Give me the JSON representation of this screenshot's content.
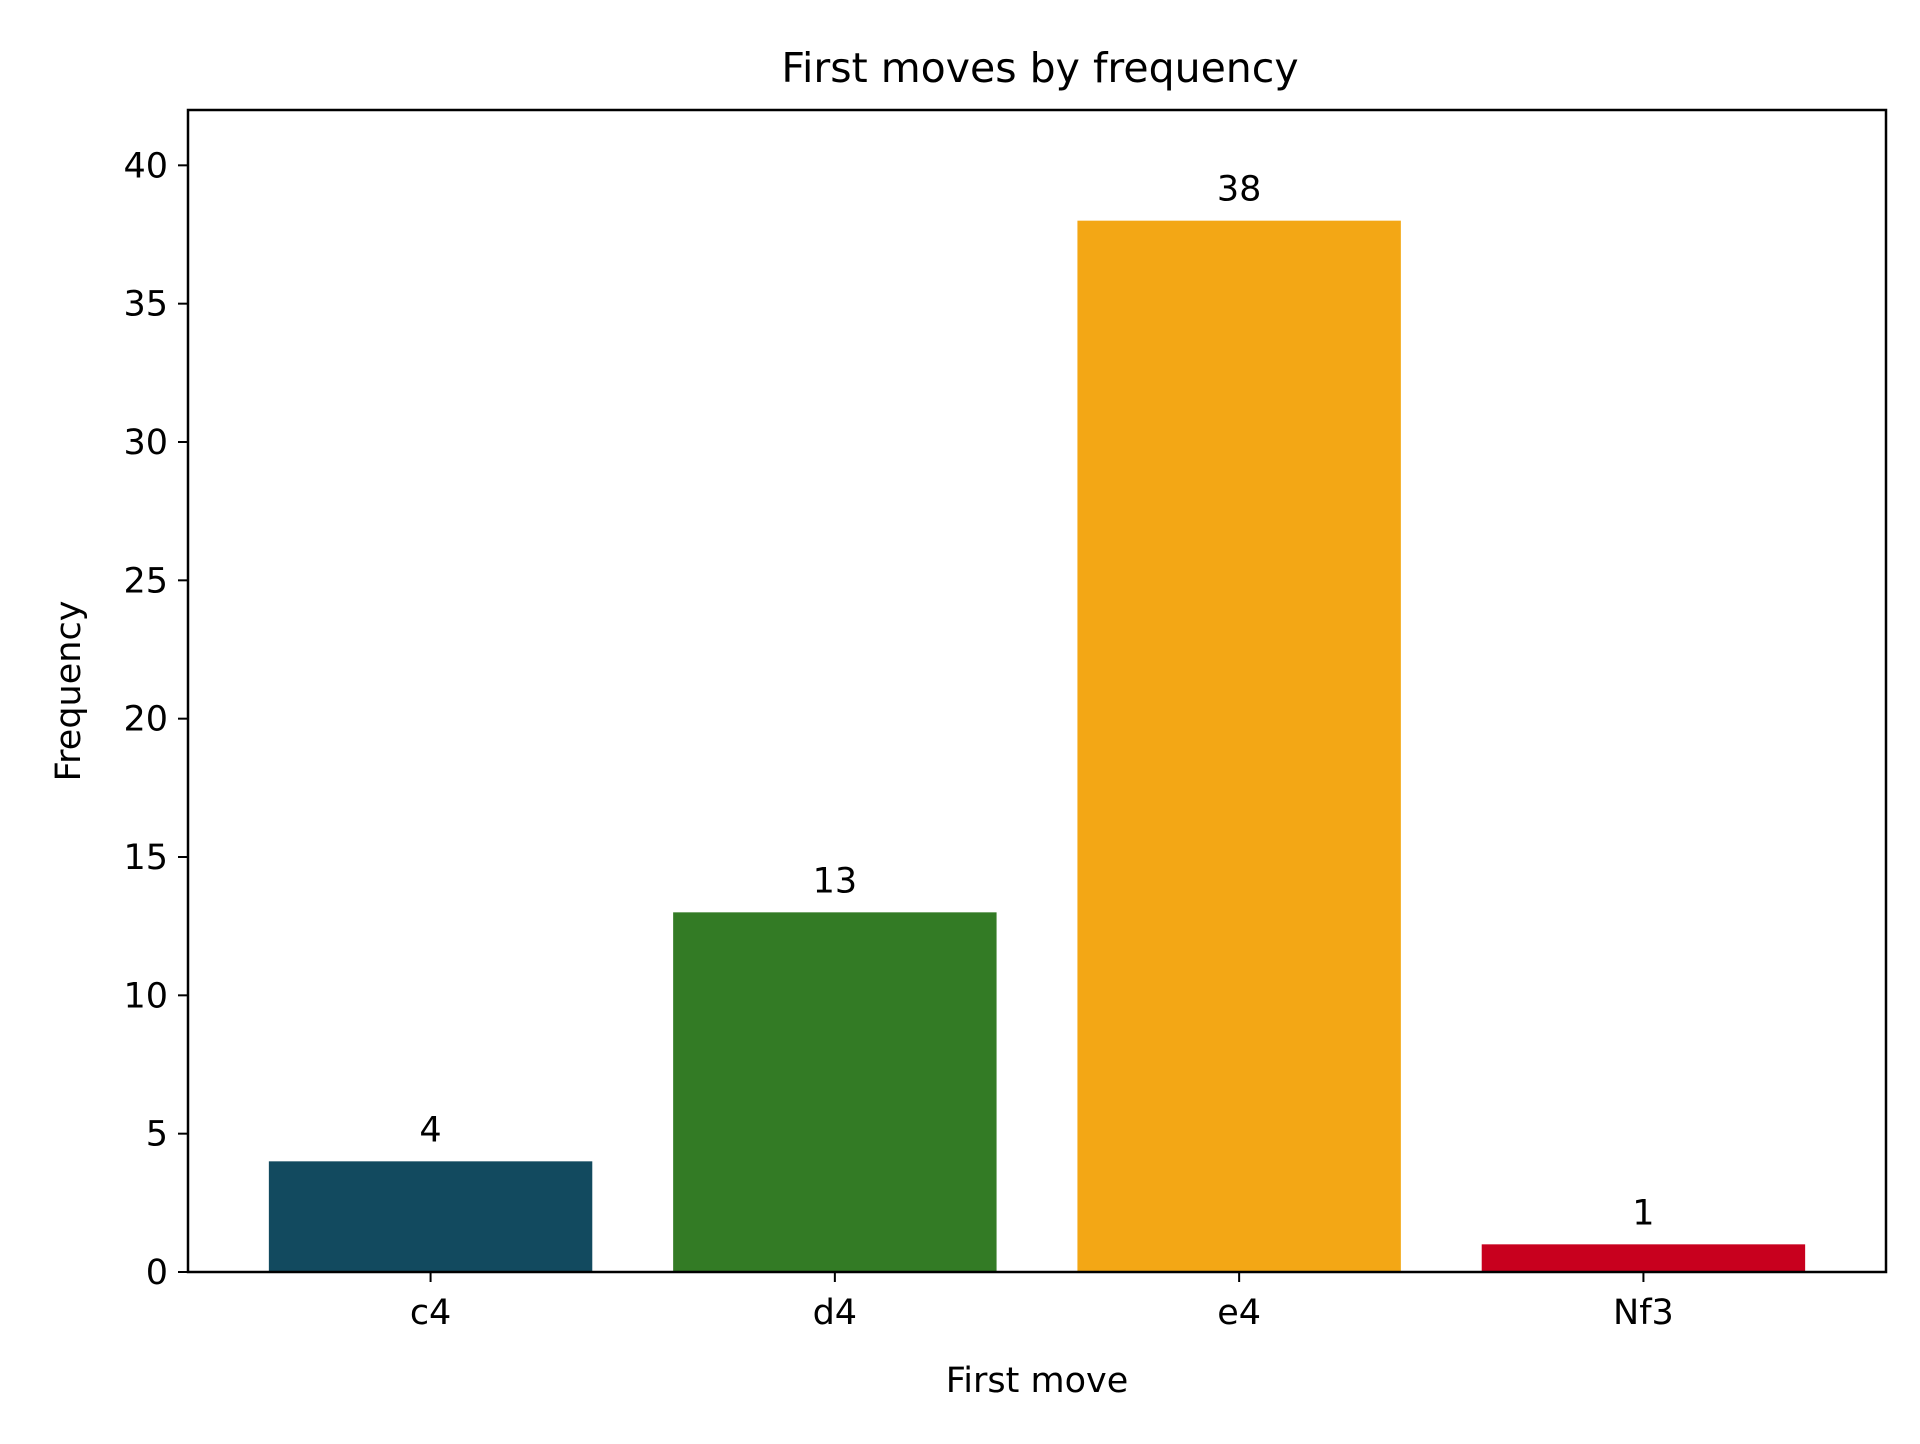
{
  "chart_data": {
    "type": "bar",
    "title": "First moves by frequency",
    "xlabel": "First move",
    "ylabel": "Frequency",
    "categories": [
      "c4",
      "d4",
      "e4",
      "Nf3"
    ],
    "values": [
      4,
      13,
      38,
      1
    ],
    "data_labels": [
      "4",
      "13",
      "38",
      "1"
    ],
    "colors": [
      "#124a5f",
      "#337b25",
      "#f3a715",
      "#c8001e"
    ],
    "ylim": [
      0,
      42
    ],
    "yticks": [
      0,
      5,
      10,
      15,
      20,
      25,
      30,
      35,
      40
    ],
    "ytick_labels": [
      "0",
      "5",
      "10",
      "15",
      "20",
      "25",
      "30",
      "35",
      "40"
    ],
    "grid": false,
    "legend": "none"
  }
}
